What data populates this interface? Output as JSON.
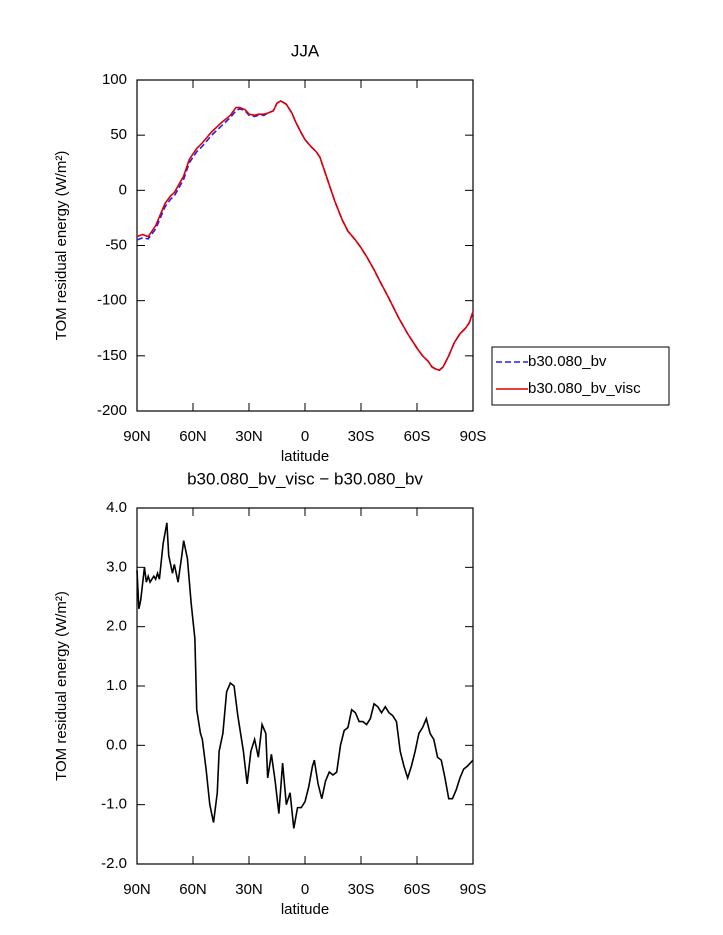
{
  "chart_data": [
    {
      "type": "line",
      "title": "JJA",
      "x_label": "latitude",
      "y_label": "TOM residual energy (W/m²)",
      "x": [
        90,
        87,
        84,
        80,
        75,
        72,
        70,
        65,
        62,
        58,
        55,
        50,
        45,
        40,
        37,
        35,
        32,
        30,
        27,
        25,
        22,
        20,
        17,
        15,
        13,
        10,
        7,
        5,
        2,
        0,
        -3,
        -6,
        -8,
        -10,
        -13,
        -16,
        -20,
        -23,
        -27,
        -30,
        -33,
        -37,
        -40,
        -45,
        -50,
        -55,
        -60,
        -63,
        -66,
        -68,
        -70,
        -72,
        -74,
        -77,
        -80,
        -83,
        -86,
        -88,
        -90
      ],
      "series": [
        {
          "name": "b30.080_bv",
          "color": "#1f1fff",
          "line_style": "dashed",
          "values": [
            -45,
            -43,
            -44,
            -35,
            -15,
            -8,
            -5,
            10,
            25,
            35,
            40,
            50,
            58,
            66,
            72,
            74,
            72,
            68,
            67,
            68,
            68,
            70,
            72,
            79,
            81,
            78,
            70,
            62,
            52,
            46,
            40,
            35,
            30,
            20,
            5,
            -10,
            -27,
            -37,
            -45,
            -52,
            -60,
            -72,
            -82,
            -98,
            -115,
            -130,
            -143,
            -150,
            -155,
            -160,
            -162,
            -163,
            -160,
            -150,
            -138,
            -130,
            -125,
            -120,
            -110
          ]
        },
        {
          "name": "b30.080_bv_visc",
          "color": "#e00000",
          "line_style": "solid",
          "values": [
            -42,
            -40,
            -42,
            -32,
            -12,
            -5,
            -2,
            13,
            28,
            38,
            43,
            53,
            61,
            68,
            75,
            75,
            73,
            69,
            68,
            69,
            69,
            70,
            72,
            79,
            81,
            78,
            70,
            62,
            52,
            46,
            40,
            35,
            30,
            20,
            5,
            -10,
            -27,
            -37,
            -45,
            -52,
            -60,
            -72,
            -82,
            -98,
            -115,
            -130,
            -143,
            -150,
            -155,
            -160,
            -162,
            -163,
            -160,
            -150,
            -138,
            -130,
            -125,
            -120,
            -110
          ]
        }
      ],
      "xlim": [
        90,
        -90
      ],
      "xticks": [
        {
          "value": 90,
          "label": "90N"
        },
        {
          "value": 60,
          "label": "60N"
        },
        {
          "value": 30,
          "label": "30N"
        },
        0,
        {
          "value": -30,
          "label": "30S"
        },
        {
          "value": -60,
          "label": "60S"
        },
        {
          "value": -90,
          "label": "90S"
        }
      ],
      "ylim": [
        -200,
        100
      ],
      "yticks": [
        -200,
        -150,
        -100,
        -50,
        0,
        50,
        100
      ],
      "legend": "right"
    },
    {
      "type": "line",
      "title": "b30.080_bv_visc − b30.080_bv",
      "x_label": "latitude",
      "y_label": "TOM residual energy (W/m²)",
      "x": [
        90,
        89,
        88,
        86,
        85,
        84,
        83,
        81,
        80,
        79,
        78,
        76,
        74,
        73,
        71,
        70,
        68,
        66,
        65,
        63,
        61,
        59,
        58,
        56,
        55,
        53,
        51,
        49,
        47,
        46,
        44,
        42,
        40,
        38,
        36,
        33,
        31,
        29,
        27,
        25,
        23,
        21,
        20,
        18,
        16,
        14,
        12,
        10,
        8,
        6,
        4,
        2,
        0,
        -2,
        -4,
        -5,
        -7,
        -9,
        -11,
        -13,
        -15,
        -17,
        -19,
        -21,
        -23,
        -25,
        -27,
        -29,
        -31,
        -33,
        -35,
        -37,
        -39,
        -41,
        -43,
        -45,
        -47,
        -49,
        -51,
        -53,
        -55,
        -57,
        -59,
        -61,
        -63,
        -65,
        -67,
        -69,
        -71,
        -73,
        -75,
        -77,
        -79,
        -81,
        -83,
        -85,
        -87,
        -90
      ],
      "values": [
        2.95,
        2.3,
        2.45,
        3.0,
        2.75,
        2.85,
        2.75,
        2.85,
        2.8,
        2.9,
        2.8,
        3.4,
        3.75,
        3.2,
        2.9,
        3.05,
        2.75,
        3.2,
        3.45,
        3.15,
        2.4,
        1.8,
        0.6,
        0.2,
        0.1,
        -0.4,
        -1.0,
        -1.3,
        -0.8,
        -0.1,
        0.2,
        0.9,
        1.05,
        1.0,
        0.5,
        -0.1,
        -0.65,
        -0.1,
        0.1,
        -0.2,
        0.35,
        0.2,
        -0.55,
        -0.15,
        -0.6,
        -1.15,
        -0.3,
        -1.0,
        -0.8,
        -1.4,
        -1.05,
        -1.05,
        -0.95,
        -0.7,
        -0.35,
        -0.25,
        -0.65,
        -0.9,
        -0.6,
        -0.45,
        -0.5,
        -0.45,
        0.0,
        0.25,
        0.3,
        0.6,
        0.55,
        0.4,
        0.4,
        0.35,
        0.45,
        0.7,
        0.65,
        0.55,
        0.65,
        0.55,
        0.5,
        0.4,
        -0.1,
        -0.35,
        -0.55,
        -0.35,
        -0.1,
        0.2,
        0.3,
        0.45,
        0.2,
        0.1,
        -0.2,
        -0.25,
        -0.55,
        -0.9,
        -0.9,
        -0.75,
        -0.55,
        -0.4,
        -0.35,
        -0.25
      ],
      "color": "#000000",
      "xlim": [
        90,
        -90
      ],
      "xticks": [
        {
          "value": 90,
          "label": "90N"
        },
        {
          "value": 60,
          "label": "60N"
        },
        {
          "value": 30,
          "label": "30N"
        },
        0,
        {
          "value": -30,
          "label": "30S"
        },
        {
          "value": -60,
          "label": "60S"
        },
        {
          "value": -90,
          "label": "90S"
        }
      ],
      "ylim": [
        -2,
        4
      ],
      "yticks": [
        {
          "value": -2,
          "label": "-2.0"
        },
        {
          "value": -1,
          "label": "-1.0"
        },
        {
          "value": 0,
          "label": "0.0"
        },
        {
          "value": 1,
          "label": "1.0"
        },
        {
          "value": 2,
          "label": "2.0"
        },
        {
          "value": 3,
          "label": "3.0"
        },
        {
          "value": 4,
          "label": "4.0"
        }
      ]
    }
  ]
}
